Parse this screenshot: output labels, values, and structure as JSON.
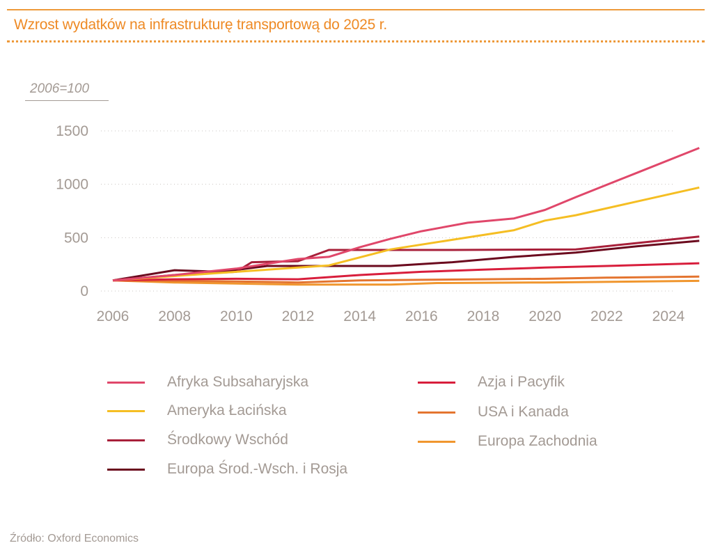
{
  "header": {
    "title": "Wzrost wydatków na infrastrukturę transportową do 2025 r."
  },
  "unit_label": "2006=100",
  "source": "Źródło: Oxford Economics",
  "chart_data": {
    "type": "line",
    "title": "Wzrost wydatków na infrastrukturę transportową do 2025 r.",
    "xlabel": "",
    "ylabel": "2006=100",
    "xlim": [
      2006,
      2025
    ],
    "ylim": [
      0,
      1500
    ],
    "grid": "horizontal-dotted",
    "legend_position": "bottom",
    "x_ticks": [
      "2006",
      "2008",
      "2010",
      "2012",
      "2014",
      "2016",
      "2018",
      "2020",
      "2022",
      "2024"
    ],
    "y_ticks": [
      "0",
      "500",
      "1000",
      "1500"
    ],
    "series": [
      {
        "name": "Afryka Subsaharyjska",
        "color": "#E0476A",
        "x": [
          2006,
          2008,
          2010,
          2012,
          2013,
          2014,
          2015,
          2016,
          2017.5,
          2019,
          2020,
          2021,
          2023,
          2025
        ],
        "values": [
          100,
          150,
          210,
          300,
          320,
          410,
          490,
          560,
          640,
          680,
          760,
          880,
          1110,
          1340
        ]
      },
      {
        "name": "Ameryka Łacińska",
        "color": "#F5BE23",
        "x": [
          2006,
          2008,
          2010,
          2012,
          2013,
          2015,
          2017,
          2019,
          2020,
          2021,
          2023,
          2025
        ],
        "values": [
          100,
          140,
          180,
          220,
          240,
          390,
          480,
          570,
          660,
          710,
          840,
          970
        ]
      },
      {
        "name": "Środkowy Wschód",
        "color": "#A8203A",
        "x": [
          2006,
          2008,
          2010,
          2010.5,
          2012,
          2013,
          2017,
          2021,
          2023,
          2025
        ],
        "values": [
          100,
          150,
          180,
          270,
          280,
          385,
          385,
          390,
          450,
          510
        ]
      },
      {
        "name": "Europa Środ.-Wsch. i Rosja",
        "color": "#6B0A1E",
        "x": [
          2006,
          2008,
          2009.5,
          2011,
          2015,
          2017,
          2019,
          2021,
          2023,
          2025
        ],
        "values": [
          100,
          195,
          180,
          235,
          235,
          270,
          320,
          360,
          420,
          470
        ]
      },
      {
        "name": "Azja i Pacyfik",
        "color": "#D81E3C",
        "x": [
          2006,
          2008,
          2010,
          2012,
          2014,
          2016,
          2018,
          2020,
          2022,
          2025
        ],
        "values": [
          100,
          110,
          115,
          110,
          150,
          180,
          200,
          220,
          235,
          260
        ]
      },
      {
        "name": "USA i Kanada",
        "color": "#E47530",
        "x": [
          2006,
          2008,
          2010,
          2012,
          2014,
          2016,
          2018,
          2020,
          2022,
          2025
        ],
        "values": [
          100,
          95,
          90,
          80,
          100,
          105,
          110,
          115,
          125,
          135
        ]
      },
      {
        "name": "Europa Zachodnia",
        "color": "#F0962E",
        "x": [
          2006,
          2008,
          2010,
          2012,
          2015,
          2016.5,
          2020,
          2025
        ],
        "values": [
          100,
          80,
          70,
          60,
          60,
          75,
          80,
          95
        ]
      }
    ]
  },
  "legend": {
    "left": [
      {
        "label": "Afryka Subsaharyjska",
        "color": "#E0476A"
      },
      {
        "label": "Ameryka Łacińska",
        "color": "#F5BE23"
      },
      {
        "label": "Środkowy Wschód",
        "color": "#A8203A"
      },
      {
        "label": "Europa Środ.-Wsch. i Rosja",
        "color": "#6B0A1E"
      }
    ],
    "right": [
      {
        "label": "Azja i Pacyfik",
        "color": "#D81E3C"
      },
      {
        "label": "USA i Kanada",
        "color": "#E47530"
      },
      {
        "label": "Europa Zachodnia",
        "color": "#F0962E"
      }
    ]
  }
}
